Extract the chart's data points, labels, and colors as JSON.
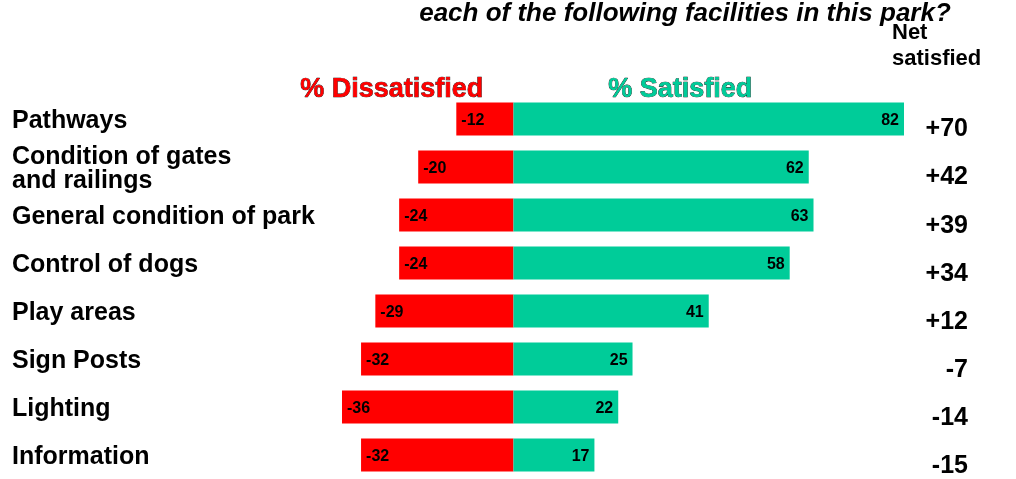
{
  "chart_data": {
    "type": "bar",
    "orientation": "horizontal",
    "stacked": true,
    "title": "each of the following facilities in this park?",
    "categories": [
      "Pathways",
      "Condition of gates\nand railings",
      "General condition of park",
      "Control of dogs",
      "Play areas",
      "Sign Posts",
      "Lighting",
      "Information"
    ],
    "series": [
      {
        "name": "% Dissatisfied",
        "color": "#ff0000",
        "values": [
          -12,
          -20,
          -24,
          -24,
          -29,
          -32,
          -36,
          -32
        ]
      },
      {
        "name": "% Satisfied",
        "color": "#00cc99",
        "values": [
          82,
          62,
          63,
          58,
          41,
          25,
          22,
          17
        ]
      }
    ],
    "annotations": [
      "Net satisfied",
      "+70",
      "+42",
      "+39",
      "+34",
      "+12",
      "-7",
      "-14",
      "-15"
    ],
    "tick_labels": "y",
    "data_labels": true,
    "legend": false
  }
}
